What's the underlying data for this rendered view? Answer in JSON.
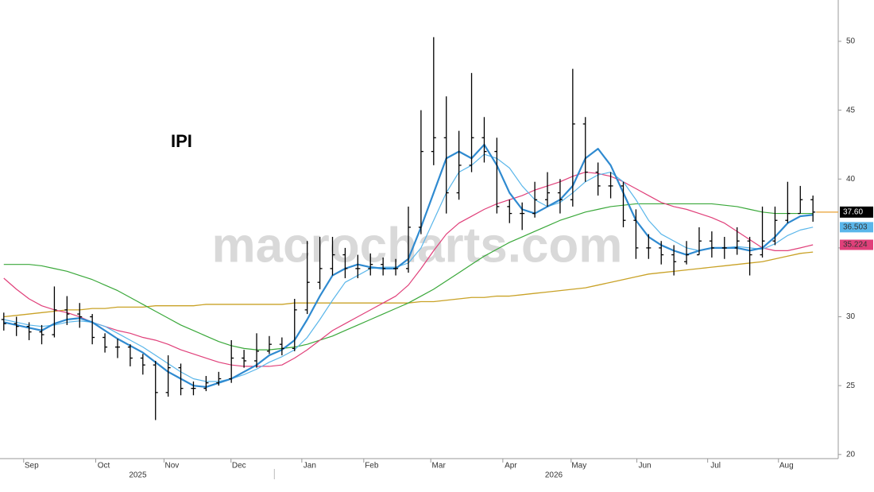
{
  "chart_data": {
    "type": "ohlc",
    "title": "IPI",
    "watermark": "macrocharts.com",
    "x": [
      0,
      1,
      2,
      3,
      4,
      5,
      6,
      7,
      8,
      9,
      10,
      11,
      12,
      13,
      14,
      15,
      16,
      17,
      18,
      19,
      20,
      21,
      22,
      23,
      24,
      25,
      26,
      27,
      28,
      29,
      30,
      31,
      32,
      33,
      34,
      35,
      36,
      37,
      38,
      39,
      40,
      41,
      42,
      43,
      44,
      45,
      46,
      47,
      48,
      49,
      50,
      51,
      52,
      53,
      54,
      55,
      56,
      57,
      58,
      59,
      60,
      61,
      62,
      63,
      64
    ],
    "xlim": [
      -0.3,
      66
    ],
    "xticks": [
      {
        "value": 2.2,
        "label": "Sep"
      },
      {
        "value": 7.9,
        "label": "Oct"
      },
      {
        "value": 13.3,
        "label": "Nov"
      },
      {
        "value": 18.6,
        "label": "Dec"
      },
      {
        "value": 24.2,
        "label": "Jan"
      },
      {
        "value": 29.1,
        "label": "Feb"
      },
      {
        "value": 34.4,
        "label": "Mar"
      },
      {
        "value": 40.1,
        "label": "Apr"
      },
      {
        "value": 45.5,
        "label": "May"
      },
      {
        "value": 50.7,
        "label": "Jun"
      },
      {
        "value": 56.3,
        "label": "Jul"
      },
      {
        "value": 61.9,
        "label": "Aug"
      }
    ],
    "year_labels": [
      {
        "value": 10.6,
        "label": "2025"
      },
      {
        "value": 43.5,
        "label": "2026"
      }
    ],
    "ylim": [
      19.7,
      53
    ],
    "yticks": [
      20,
      25,
      30,
      35,
      40,
      45,
      50
    ],
    "color": "#000000",
    "open": [
      29.8,
      29.5,
      29.3,
      28.9,
      28.7,
      30.5,
      30.2,
      30.0,
      28.5,
      27.8,
      27.8,
      27.0,
      26.5,
      24.5,
      26.3,
      24.8,
      24.8,
      25.2,
      25.5,
      27.0,
      26.8,
      27.5,
      28.0,
      27.7,
      30.5,
      32.5,
      33.5,
      34.5,
      33.5,
      33.5,
      33.8,
      33.5,
      33.5,
      36.5,
      42.0,
      43.0,
      39.0,
      41.0,
      43.0,
      42.0,
      38.0,
      37.5,
      37.5,
      38.5,
      39.0,
      38.5,
      44.0,
      40.5,
      39.5,
      39.5,
      37.0,
      35.0,
      35.0,
      34.5,
      34.0,
      34.5,
      35.5,
      35.0,
      35.0,
      35.5,
      34.5,
      35.5,
      37.0,
      37.5,
      38.5
    ],
    "high": [
      30.3,
      30.0,
      29.6,
      29.4,
      32.2,
      31.5,
      31.0,
      30.2,
      28.8,
      28.4,
      28.0,
      27.3,
      26.8,
      27.2,
      26.6,
      25.3,
      25.7,
      26.0,
      28.3,
      27.6,
      28.8,
      28.6,
      28.5,
      31.3,
      35.5,
      35.8,
      35.8,
      35.0,
      34.5,
      34.6,
      34.3,
      34.2,
      38.0,
      45.0,
      50.3,
      46.0,
      43.5,
      47.7,
      44.5,
      43.0,
      38.5,
      38.3,
      39.8,
      40.5,
      40.0,
      48.0,
      44.5,
      41.2,
      40.5,
      39.8,
      37.8,
      36.0,
      35.5,
      35.2,
      35.5,
      36.5,
      36.2,
      35.8,
      36.5,
      35.8,
      38.0,
      38.0,
      39.8,
      39.5,
      38.8
    ],
    "low": [
      29.0,
      28.6,
      28.3,
      28.0,
      28.5,
      29.4,
      29.2,
      28.0,
      27.4,
      27.0,
      26.4,
      25.8,
      22.5,
      24.2,
      24.3,
      24.3,
      24.6,
      25.0,
      25.2,
      26.3,
      26.3,
      27.3,
      27.2,
      27.5,
      30.2,
      32.0,
      33.0,
      32.8,
      32.8,
      33.0,
      33.0,
      33.0,
      33.2,
      36.0,
      41.0,
      37.5,
      38.5,
      40.5,
      41.2,
      37.5,
      36.8,
      36.3,
      37.2,
      38.0,
      37.5,
      38.0,
      39.8,
      38.8,
      38.6,
      36.5,
      34.2,
      34.2,
      33.8,
      33.0,
      33.8,
      34.5,
      34.3,
      34.2,
      34.5,
      33.0,
      34.3,
      35.2,
      36.8,
      37.5,
      36.9
    ],
    "close": [
      29.5,
      29.3,
      28.9,
      28.7,
      30.5,
      30.2,
      30.0,
      28.5,
      27.8,
      27.8,
      27.0,
      26.5,
      24.5,
      26.3,
      24.8,
      24.8,
      25.2,
      25.5,
      27.0,
      26.8,
      27.5,
      28.0,
      27.7,
      30.5,
      32.5,
      33.5,
      34.5,
      33.5,
      33.5,
      33.8,
      33.5,
      33.5,
      36.5,
      42.0,
      43.0,
      39.0,
      41.0,
      43.0,
      42.0,
      38.0,
      37.5,
      37.5,
      38.5,
      39.0,
      38.5,
      44.0,
      40.5,
      39.5,
      39.5,
      37.0,
      35.0,
      35.0,
      34.5,
      34.0,
      34.5,
      35.5,
      35.0,
      35.0,
      35.5,
      34.5,
      35.5,
      37.0,
      37.5,
      38.5,
      37.6
    ],
    "last_price_label": "37.60",
    "last_price_color": "#e8a030",
    "series": [
      {
        "color": "#c9a227",
        "width": 1.3,
        "values": [
          30.0,
          30.1,
          30.2,
          30.3,
          30.4,
          30.5,
          30.5,
          30.6,
          30.6,
          30.7,
          30.7,
          30.7,
          30.8,
          30.8,
          30.8,
          30.8,
          30.9,
          30.9,
          30.9,
          30.9,
          30.9,
          30.9,
          30.9,
          31.0,
          31.0,
          31.0,
          31.0,
          31.0,
          31.0,
          31.0,
          31.0,
          31.0,
          31.0,
          31.1,
          31.1,
          31.2,
          31.3,
          31.4,
          31.4,
          31.5,
          31.5,
          31.6,
          31.7,
          31.8,
          31.9,
          32.0,
          32.1,
          32.3,
          32.5,
          32.7,
          32.9,
          33.1,
          33.2,
          33.3,
          33.4,
          33.5,
          33.6,
          33.7,
          33.8,
          33.9,
          34.0,
          34.2,
          34.4,
          34.6,
          34.7
        ]
      },
      {
        "color": "#3aa83a",
        "width": 1.2,
        "values": [
          33.8,
          33.8,
          33.8,
          33.7,
          33.5,
          33.3,
          33.0,
          32.7,
          32.3,
          31.9,
          31.4,
          30.9,
          30.4,
          29.9,
          29.4,
          29.0,
          28.6,
          28.2,
          27.9,
          27.7,
          27.6,
          27.6,
          27.7,
          27.8,
          28.0,
          28.3,
          28.6,
          29.0,
          29.4,
          29.8,
          30.2,
          30.6,
          31.0,
          31.5,
          32.0,
          32.6,
          33.2,
          33.8,
          34.4,
          34.9,
          35.4,
          35.8,
          36.2,
          36.6,
          37.0,
          37.3,
          37.6,
          37.8,
          38.0,
          38.1,
          38.2,
          38.2,
          38.2,
          38.2,
          38.2,
          38.2,
          38.2,
          38.1,
          38.0,
          37.8,
          37.6,
          37.5,
          37.5,
          37.5,
          37.5
        ]
      },
      {
        "color": "#e0407a",
        "width": 1.2,
        "label_last": true,
        "values": [
          32.8,
          32.0,
          31.3,
          30.8,
          30.5,
          30.3,
          30.0,
          29.6,
          29.3,
          29.0,
          28.8,
          28.5,
          28.3,
          28.0,
          27.6,
          27.3,
          27.0,
          26.7,
          26.5,
          26.4,
          26.4,
          26.4,
          26.5,
          27.0,
          27.6,
          28.3,
          29.0,
          29.5,
          30.0,
          30.5,
          31.0,
          31.5,
          32.3,
          33.5,
          34.8,
          36.0,
          36.8,
          37.3,
          37.8,
          38.2,
          38.5,
          38.8,
          39.2,
          39.5,
          39.8,
          40.2,
          40.5,
          40.4,
          40.2,
          39.8,
          39.3,
          38.8,
          38.3,
          38.0,
          37.8,
          37.5,
          37.2,
          36.8,
          36.2,
          35.6,
          35.0,
          34.8,
          34.8,
          35.0,
          35.224
        ]
      },
      {
        "color": "#5ab6ea",
        "width": 1.2,
        "label_last": true,
        "values": [
          29.8,
          29.6,
          29.4,
          29.3,
          29.4,
          29.6,
          29.7,
          29.6,
          29.3,
          28.8,
          28.3,
          27.8,
          27.2,
          26.6,
          26.0,
          25.5,
          25.3,
          25.3,
          25.5,
          25.8,
          26.2,
          26.7,
          27.1,
          27.6,
          28.5,
          29.8,
          31.2,
          32.5,
          33.0,
          33.5,
          33.6,
          33.6,
          33.9,
          35.0,
          37.0,
          39.0,
          40.5,
          41.0,
          41.8,
          41.5,
          40.8,
          39.5,
          38.5,
          38.0,
          38.3,
          39.0,
          39.8,
          40.3,
          40.5,
          39.8,
          38.5,
          37.0,
          36.0,
          35.5,
          35.0,
          34.8,
          35.0,
          35.0,
          35.1,
          35.0,
          34.9,
          35.3,
          35.9,
          36.3,
          36.503
        ]
      },
      {
        "color": "#2f8ad0",
        "width": 2.2,
        "values": [
          29.6,
          29.4,
          29.2,
          29.0,
          29.5,
          29.8,
          29.9,
          29.6,
          29.0,
          28.4,
          27.9,
          27.4,
          26.7,
          26.0,
          25.5,
          25.0,
          24.9,
          25.2,
          25.5,
          26.0,
          26.5,
          27.2,
          27.6,
          28.3,
          29.8,
          31.5,
          33.0,
          33.5,
          33.8,
          33.6,
          33.5,
          33.5,
          34.2,
          36.5,
          39.0,
          41.5,
          42.0,
          41.5,
          42.5,
          41.0,
          39.0,
          37.8,
          37.5,
          38.0,
          38.5,
          39.5,
          41.5,
          42.2,
          41.0,
          39.0,
          37.0,
          35.8,
          35.2,
          34.8,
          34.5,
          34.8,
          35.0,
          35.0,
          35.0,
          34.8,
          35.0,
          35.8,
          36.8,
          37.3,
          37.4
        ]
      }
    ]
  }
}
